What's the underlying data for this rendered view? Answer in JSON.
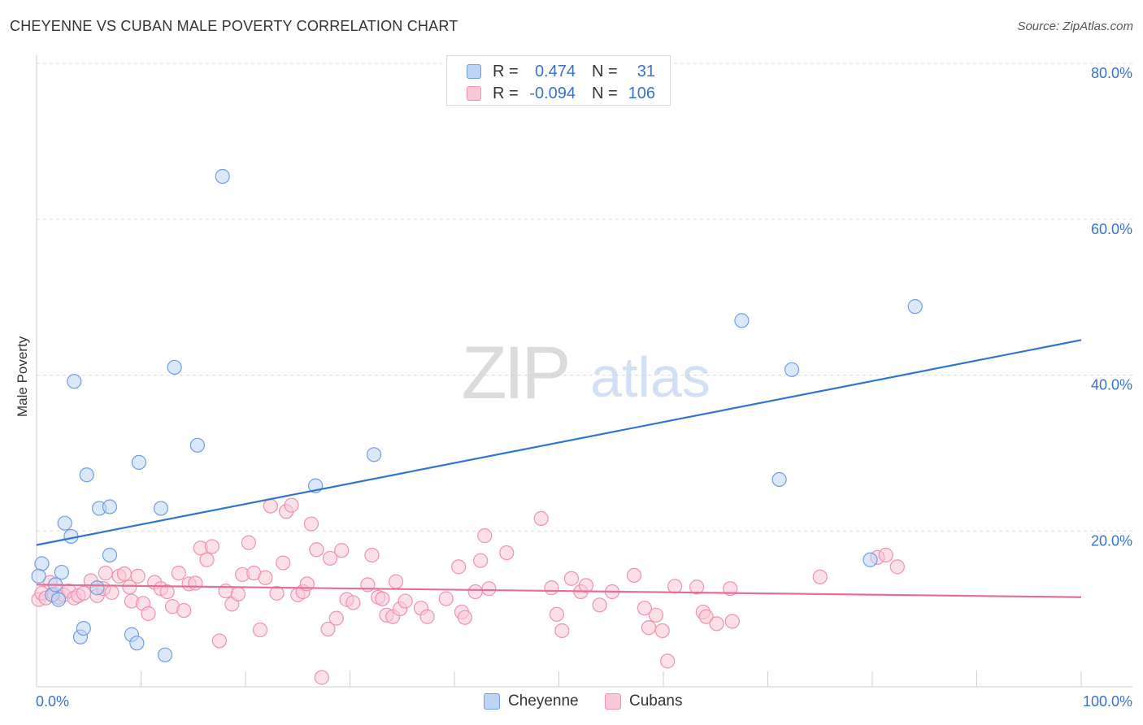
{
  "title": "CHEYENNE VS CUBAN MALE POVERTY CORRELATION CHART",
  "source": "Source: ZipAtlas.com",
  "watermark": {
    "zip": "ZIP",
    "atlas": "atlas"
  },
  "legend": {
    "rows": [
      {
        "r_label": "R =",
        "r_value": "0.474",
        "n_label": "N =",
        "n_value": "31"
      },
      {
        "r_label": "R =",
        "r_value": "-0.094",
        "n_label": "N =",
        "n_value": "106"
      }
    ]
  },
  "bottom_legend": {
    "series1": "Cheyenne",
    "series2": "Cubans"
  },
  "colors": {
    "cheyenne_fill": "#bdd5f5",
    "cheyenne_stroke": "#6e9ee0",
    "cheyenne_line": "#2f74d0",
    "cubans_fill": "#f9c7d6",
    "cubans_stroke": "#ec93ae",
    "cubans_line": "#e46f96",
    "tick_label": "#3a72c9"
  },
  "chart_data": {
    "type": "scatter",
    "title": "CHEYENNE VS CUBAN MALE POVERTY CORRELATION CHART",
    "xlabel": "",
    "ylabel": "Male Poverty",
    "xlim": [
      0,
      100
    ],
    "ylim": [
      0,
      80
    ],
    "x_tick_labels": [
      "0.0%",
      "100.0%"
    ],
    "y_tick_labels": [
      "20.0%",
      "40.0%",
      "60.0%",
      "80.0%"
    ],
    "y_ticks": [
      20,
      40,
      60,
      80
    ],
    "series": [
      {
        "name": "Cheyenne",
        "r": 0.474,
        "n": 31,
        "trend": [
          [
            0,
            18.2
          ],
          [
            100,
            44.5
          ]
        ],
        "points": [
          [
            0.5,
            15.8
          ],
          [
            1.5,
            11.8
          ],
          [
            1.8,
            13.1
          ],
          [
            2.1,
            11.2
          ],
          [
            2.4,
            14.7
          ],
          [
            2.7,
            21.0
          ],
          [
            3.3,
            19.3
          ],
          [
            3.6,
            39.2
          ],
          [
            4.2,
            6.4
          ],
          [
            4.5,
            7.5
          ],
          [
            4.8,
            27.2
          ],
          [
            5.8,
            12.7
          ],
          [
            6.0,
            22.9
          ],
          [
            7.0,
            23.1
          ],
          [
            7.0,
            16.9
          ],
          [
            9.1,
            6.7
          ],
          [
            9.6,
            5.6
          ],
          [
            9.8,
            28.8
          ],
          [
            11.9,
            22.9
          ],
          [
            12.3,
            4.1
          ],
          [
            13.2,
            41.0
          ],
          [
            15.4,
            31.0
          ],
          [
            17.8,
            65.5
          ],
          [
            26.7,
            25.8
          ],
          [
            32.3,
            29.8
          ],
          [
            67.5,
            47.0
          ],
          [
            71.1,
            26.6
          ],
          [
            72.3,
            40.7
          ],
          [
            79.8,
            16.3
          ],
          [
            84.1,
            48.8
          ],
          [
            0.2,
            14.2
          ]
        ]
      },
      {
        "name": "Cubans",
        "r": -0.094,
        "n": 106,
        "trend": [
          [
            0,
            13.1
          ],
          [
            100,
            11.5
          ]
        ],
        "points": [
          [
            0.2,
            11.2
          ],
          [
            0.5,
            12.0
          ],
          [
            0.9,
            11.4
          ],
          [
            1.3,
            13.4
          ],
          [
            1.7,
            11.9
          ],
          [
            2.1,
            11.5
          ],
          [
            2.6,
            11.8
          ],
          [
            3.1,
            12.3
          ],
          [
            3.6,
            11.4
          ],
          [
            4.0,
            11.7
          ],
          [
            4.5,
            12.0
          ],
          [
            5.2,
            13.6
          ],
          [
            5.8,
            11.7
          ],
          [
            6.4,
            12.6
          ],
          [
            6.6,
            14.6
          ],
          [
            7.2,
            12.1
          ],
          [
            7.9,
            14.2
          ],
          [
            8.4,
            14.5
          ],
          [
            8.9,
            12.8
          ],
          [
            9.1,
            11.0
          ],
          [
            9.7,
            14.2
          ],
          [
            10.2,
            10.7
          ],
          [
            10.7,
            9.4
          ],
          [
            11.3,
            13.4
          ],
          [
            11.9,
            12.6
          ],
          [
            12.5,
            12.2
          ],
          [
            13.0,
            10.3
          ],
          [
            13.6,
            14.6
          ],
          [
            14.1,
            9.8
          ],
          [
            14.6,
            13.2
          ],
          [
            15.2,
            13.3
          ],
          [
            15.7,
            17.8
          ],
          [
            16.3,
            16.3
          ],
          [
            16.8,
            18.0
          ],
          [
            17.5,
            5.9
          ],
          [
            18.1,
            12.3
          ],
          [
            18.7,
            10.6
          ],
          [
            19.3,
            11.9
          ],
          [
            19.7,
            14.4
          ],
          [
            20.3,
            18.5
          ],
          [
            20.8,
            14.6
          ],
          [
            21.4,
            7.3
          ],
          [
            21.9,
            14.0
          ],
          [
            22.4,
            23.2
          ],
          [
            23.0,
            12.0
          ],
          [
            23.6,
            15.9
          ],
          [
            23.9,
            22.5
          ],
          [
            24.4,
            23.3
          ],
          [
            25.0,
            11.8
          ],
          [
            25.5,
            12.2
          ],
          [
            25.9,
            13.2
          ],
          [
            26.3,
            20.9
          ],
          [
            26.8,
            17.6
          ],
          [
            27.3,
            1.2
          ],
          [
            27.9,
            7.4
          ],
          [
            28.1,
            16.5
          ],
          [
            28.7,
            8.8
          ],
          [
            29.2,
            17.5
          ],
          [
            29.7,
            11.2
          ],
          [
            30.3,
            10.8
          ],
          [
            31.7,
            13.1
          ],
          [
            32.1,
            16.9
          ],
          [
            32.7,
            11.5
          ],
          [
            33.1,
            11.3
          ],
          [
            33.5,
            9.2
          ],
          [
            34.1,
            9.0
          ],
          [
            34.4,
            13.5
          ],
          [
            34.8,
            10.0
          ],
          [
            35.3,
            11.0
          ],
          [
            36.8,
            10.1
          ],
          [
            37.4,
            9.0
          ],
          [
            39.2,
            11.3
          ],
          [
            40.4,
            15.4
          ],
          [
            40.7,
            9.6
          ],
          [
            41.0,
            8.9
          ],
          [
            42.0,
            12.2
          ],
          [
            42.5,
            16.2
          ],
          [
            42.9,
            19.4
          ],
          [
            43.3,
            12.6
          ],
          [
            45.0,
            17.2
          ],
          [
            48.3,
            21.6
          ],
          [
            49.3,
            12.7
          ],
          [
            49.8,
            9.3
          ],
          [
            50.3,
            7.2
          ],
          [
            51.2,
            13.9
          ],
          [
            52.1,
            12.2
          ],
          [
            52.6,
            13.0
          ],
          [
            53.9,
            10.5
          ],
          [
            55.1,
            12.2
          ],
          [
            57.2,
            14.3
          ],
          [
            58.2,
            10.1
          ],
          [
            58.6,
            7.6
          ],
          [
            59.3,
            9.2
          ],
          [
            59.9,
            7.2
          ],
          [
            60.4,
            3.3
          ],
          [
            61.1,
            12.9
          ],
          [
            63.2,
            12.8
          ],
          [
            63.8,
            9.6
          ],
          [
            64.1,
            9.0
          ],
          [
            65.1,
            8.1
          ],
          [
            66.4,
            12.6
          ],
          [
            66.6,
            8.4
          ],
          [
            75.0,
            14.1
          ],
          [
            80.5,
            16.6
          ],
          [
            81.3,
            16.9
          ],
          [
            82.4,
            15.4
          ]
        ]
      }
    ]
  }
}
